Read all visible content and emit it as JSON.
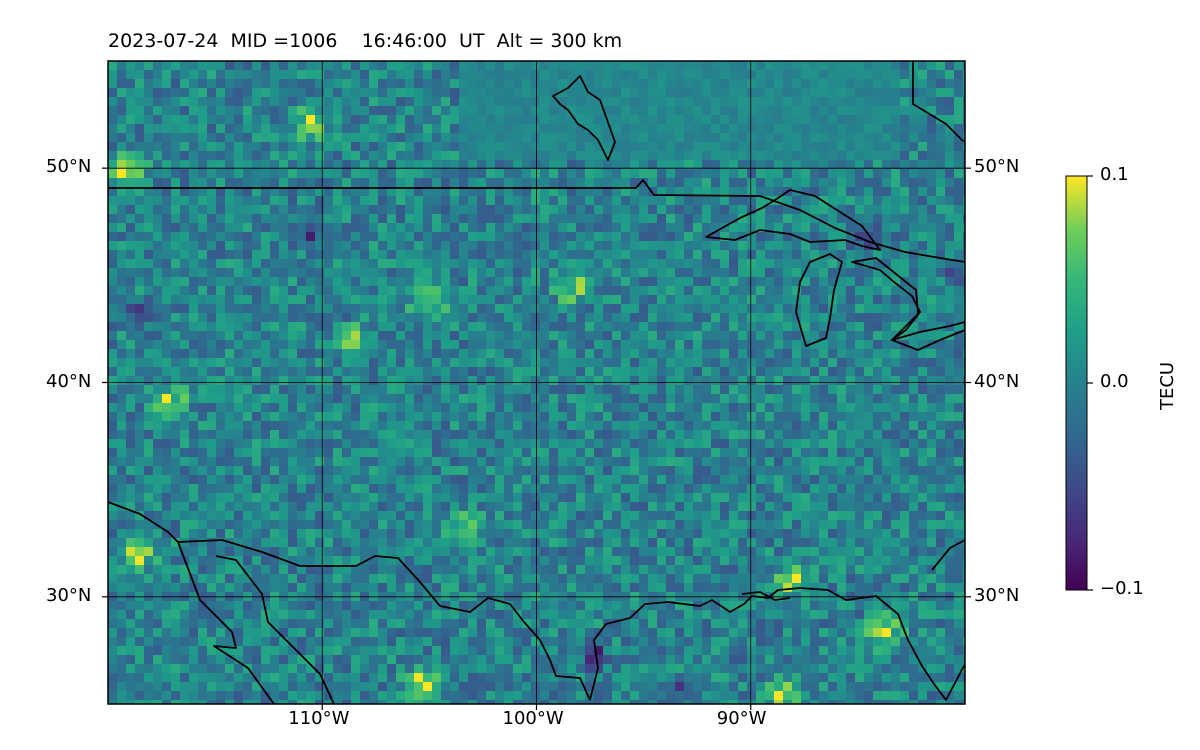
{
  "title": "2023-07-24  MID =1006    16:46:00  UT  Alt = 300 km",
  "map": {
    "lon_range": [
      -120,
      -80
    ],
    "lat_range": [
      25,
      55
    ],
    "lat_labels": [
      "50°N",
      "40°N",
      "30°N"
    ],
    "lat_values": [
      50,
      40,
      30
    ],
    "lon_labels": [
      "110°W",
      "100°W",
      "90°W"
    ],
    "lon_values": [
      -110,
      -100,
      -90
    ],
    "gridlines": true,
    "coastlines": true,
    "colormap": "viridis"
  },
  "colorbar": {
    "label": "TECU",
    "vmin": -0.1,
    "vmax": 0.1,
    "ticks": [
      "0.1",
      "0.0",
      "−0.1"
    ],
    "tick_values": [
      0.1,
      0.0,
      -0.1
    ],
    "placement": "right"
  },
  "colors": {
    "viridis_low": "#440154",
    "viridis_mid": "#21918c",
    "viridis_high": "#fde725",
    "coastline": "#000000"
  }
}
